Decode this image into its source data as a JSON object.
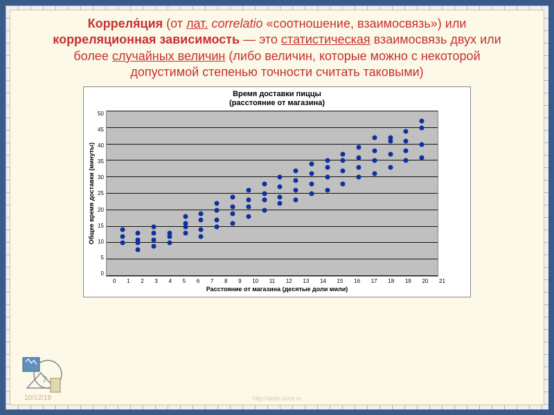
{
  "definition": {
    "term": "Корреля́ция",
    "from": "(от",
    "lat_link": "лат.",
    "latin_italic": "correlatio",
    "quote_open": "«соотношение, взаимосвязь») или",
    "bold2": "корреляционная зависимость",
    "dash": "— это",
    "stat_link": "статистическая",
    "mid": "взаимосвязь двух или более",
    "rand_link": "случайных величин",
    "tail": "(либо величин, которые можно с некоторой допустимой степенью точности считать таковыми)"
  },
  "chart": {
    "type": "scatter",
    "title_line1": "Время доставки пиццы",
    "title_line2": "(расстояние от магазина)",
    "xlabel": "Расстояние от магазина (десятые доли мили)",
    "ylabel": "Общее время доставки (минуты)",
    "xlim": [
      0,
      21
    ],
    "ylim": [
      0,
      50
    ],
    "xtick_step": 1,
    "ytick_step": 5,
    "yticks": [
      50,
      45,
      40,
      35,
      30,
      25,
      20,
      15,
      10,
      5,
      0
    ],
    "xticks": [
      0,
      1,
      2,
      3,
      4,
      5,
      6,
      7,
      8,
      9,
      10,
      11,
      12,
      13,
      14,
      15,
      16,
      17,
      18,
      19,
      20,
      21
    ],
    "plot_bg": "#c0c0c0",
    "grid_color": "#000000",
    "marker_color": "#1030a0",
    "marker_size": 7,
    "title_fontsize": 11,
    "label_fontsize": 9,
    "tick_fontsize": 8,
    "data": [
      [
        1,
        10
      ],
      [
        1,
        12
      ],
      [
        1,
        14
      ],
      [
        2,
        8
      ],
      [
        2,
        10
      ],
      [
        2,
        11
      ],
      [
        2,
        13
      ],
      [
        3,
        9
      ],
      [
        3,
        11
      ],
      [
        3,
        13
      ],
      [
        3,
        15
      ],
      [
        4,
        10
      ],
      [
        4,
        12
      ],
      [
        4,
        13
      ],
      [
        5,
        13
      ],
      [
        5,
        15
      ],
      [
        5,
        16
      ],
      [
        5,
        18
      ],
      [
        6,
        12
      ],
      [
        6,
        14
      ],
      [
        6,
        17
      ],
      [
        6,
        19
      ],
      [
        7,
        15
      ],
      [
        7,
        17
      ],
      [
        7,
        20
      ],
      [
        7,
        22
      ],
      [
        8,
        16
      ],
      [
        8,
        19
      ],
      [
        8,
        21
      ],
      [
        8,
        24
      ],
      [
        9,
        18
      ],
      [
        9,
        21
      ],
      [
        9,
        23
      ],
      [
        9,
        26
      ],
      [
        10,
        20
      ],
      [
        10,
        23
      ],
      [
        10,
        25
      ],
      [
        10,
        28
      ],
      [
        11,
        22
      ],
      [
        11,
        24
      ],
      [
        11,
        27
      ],
      [
        11,
        30
      ],
      [
        12,
        23
      ],
      [
        12,
        26
      ],
      [
        12,
        29
      ],
      [
        12,
        32
      ],
      [
        13,
        25
      ],
      [
        13,
        28
      ],
      [
        13,
        31
      ],
      [
        13,
        34
      ],
      [
        14,
        26
      ],
      [
        14,
        30
      ],
      [
        14,
        33
      ],
      [
        14,
        35
      ],
      [
        15,
        28
      ],
      [
        15,
        32
      ],
      [
        15,
        35
      ],
      [
        15,
        37
      ],
      [
        16,
        30
      ],
      [
        16,
        33
      ],
      [
        16,
        36
      ],
      [
        16,
        39
      ],
      [
        17,
        31
      ],
      [
        17,
        35
      ],
      [
        17,
        38
      ],
      [
        17,
        42
      ],
      [
        18,
        33
      ],
      [
        18,
        37
      ],
      [
        18,
        41
      ],
      [
        18,
        42
      ],
      [
        19,
        35
      ],
      [
        19,
        38
      ],
      [
        19,
        41
      ],
      [
        19,
        44
      ],
      [
        20,
        36
      ],
      [
        20,
        40
      ],
      [
        20,
        45
      ],
      [
        20,
        47
      ]
    ]
  },
  "footer": {
    "date": "10/12/18",
    "link": "http://aida.ucoz.ru"
  },
  "colors": {
    "text_red": "#c73030",
    "panel_bg": "#fdf9e8",
    "outer_border": "#3a5a8a"
  }
}
